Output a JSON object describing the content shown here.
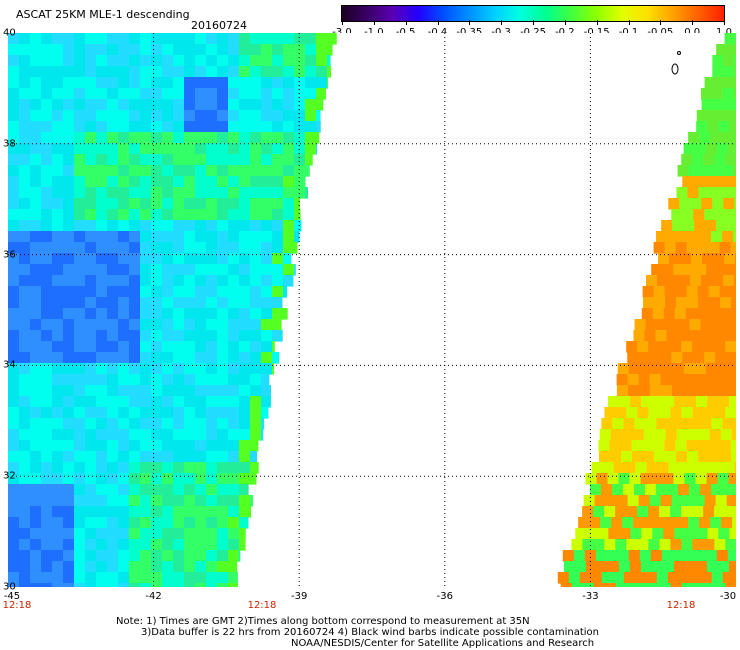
{
  "header": {
    "title": "ASCAT 25KM MLE-1 descending",
    "date": "20160724"
  },
  "colorbar": {
    "labels": [
      "-3.0",
      "-1.0",
      "-0.5",
      "-0.4",
      "-0.35",
      "-0.3",
      "-0.25",
      "-0.2",
      "-0.15",
      "-0.1",
      "-0.05",
      "0.0",
      "1.0"
    ],
    "colors": [
      "#1a0022",
      "#3a0066",
      "#5a00b4",
      "#2200ff",
      "#0050ff",
      "#0090ff",
      "#00d0ff",
      "#00ffe0",
      "#00ff90",
      "#40ff40",
      "#90ff00",
      "#e0ff00",
      "#ffe000",
      "#ffa000",
      "#ff6000",
      "#ff2000"
    ]
  },
  "map": {
    "y_ticks": [
      "40",
      "38",
      "36",
      "34",
      "32",
      "30"
    ],
    "x_ticks": [
      "-45",
      "-42",
      "-39",
      "-36",
      "-33",
      "-30"
    ],
    "lat_range": [
      30,
      40
    ],
    "lon_range": [
      -45,
      -30
    ],
    "time_labels": [
      "12:18",
      "12:18",
      "12:18"
    ],
    "grid": true,
    "swaths": [
      {
        "side": "west",
        "dominant": "cyan-green",
        "low_pocket": "blue"
      },
      {
        "side": "east",
        "dominant": "orange-yellow-green"
      }
    ]
  },
  "notes": {
    "line1": "Note: 1) Times are GMT 2)Times along bottom correspond to measurement at 35N",
    "line2": "3)Data buffer is 22 hrs from 20160724 4) Black wind barbs indicate possible contamination",
    "line3": "NOAA/NESDIS/Center for Satellite Applications and Research"
  }
}
